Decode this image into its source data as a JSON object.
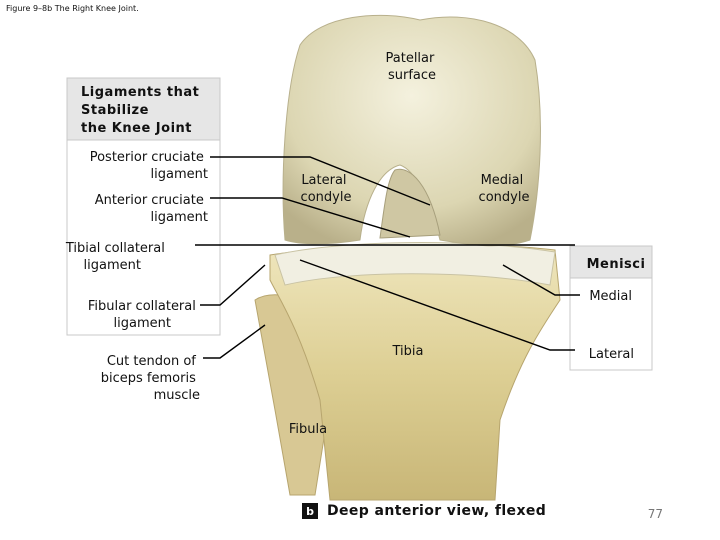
{
  "header": {
    "figure_title": "Figure 9–8b The Right Knee Joint."
  },
  "left_panel": {
    "title_lines": [
      "Ligaments that",
      "Stabilize",
      "the Knee Joint"
    ],
    "labels": [
      {
        "lines": [
          "Posterior cruciate",
          "ligament"
        ]
      },
      {
        "lines": [
          "Anterior cruciate",
          "ligament"
        ]
      },
      {
        "lines": [
          "Tibial collateral",
          "ligament"
        ]
      },
      {
        "lines": [
          "Fibular collateral",
          "ligament"
        ]
      },
      {
        "lines": [
          "Cut tendon of",
          "biceps femoris",
          "muscle"
        ]
      }
    ]
  },
  "image_labels": [
    {
      "lines": [
        "Patellar",
        "surface"
      ]
    },
    {
      "lines": [
        "Lateral",
        "condyle"
      ]
    },
    {
      "lines": [
        "Medial",
        "condyle"
      ]
    },
    {
      "lines": [
        "Tibia"
      ]
    },
    {
      "lines": [
        "Fibula"
      ]
    }
  ],
  "menisci_panel": {
    "title": "Menisci",
    "labels": [
      "Medial",
      "Lateral"
    ]
  },
  "caption": {
    "badge": "b",
    "text": "Deep anterior view, flexed"
  },
  "page_number": 77
}
